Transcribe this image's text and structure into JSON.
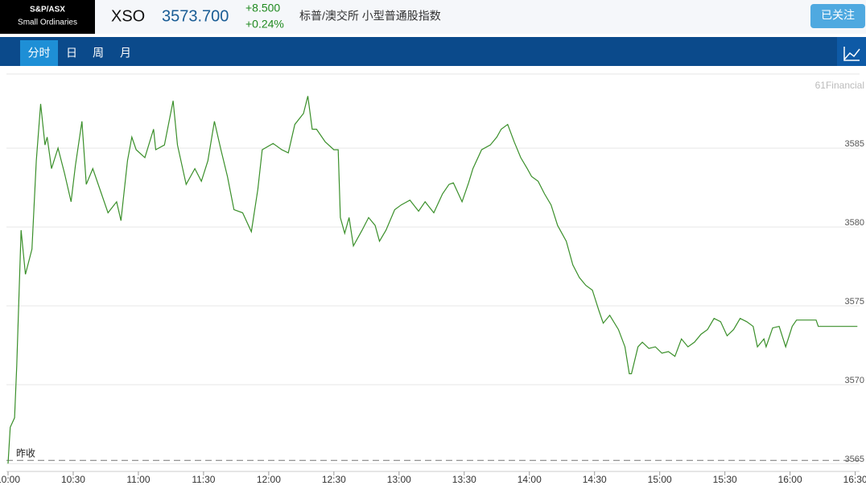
{
  "header": {
    "logo": [
      "S&P/ASX",
      "Small Ordinaries"
    ],
    "symbol": "XSO",
    "price": "3573.700",
    "change": "+8.500",
    "change_pct": "+0.24%",
    "name": "标普/澳交所 小型普通股指数",
    "follow_button": "已关注"
  },
  "tabs": [
    "分时",
    "日",
    "周",
    "月"
  ],
  "active_tab": 0,
  "chart_data": {
    "type": "line",
    "watermark": "61Financial",
    "color": "#3a8f2a",
    "x": [
      "10:00",
      "10:01",
      "10:03",
      "10:04",
      "10:06",
      "10:08",
      "10:11",
      "10:13",
      "10:15",
      "10:17",
      "10:18",
      "10:20",
      "10:23",
      "10:26",
      "10:29",
      "10:31",
      "10:34",
      "10:36",
      "10:39",
      "10:43",
      "10:46",
      "10:50",
      "10:52",
      "10:55",
      "10:57",
      "10:59",
      "11:03",
      "11:07",
      "11:08",
      "11:12",
      "11:16",
      "11:18",
      "11:22",
      "11:26",
      "11:29",
      "11:32",
      "11:35",
      "11:38",
      "11:41",
      "11:44",
      "11:48",
      "11:52",
      "11:55",
      "11:57",
      "12:02",
      "12:06",
      "12:09",
      "12:12",
      "12:16",
      "12:18",
      "12:20",
      "12:22",
      "12:26",
      "12:30",
      "12:32",
      "12:33",
      "12:35",
      "12:37",
      "12:39",
      "12:43",
      "12:46",
      "12:49",
      "12:51",
      "12:54",
      "12:58",
      "13:01",
      "13:05",
      "13:09",
      "13:12",
      "13:16",
      "13:20",
      "13:23",
      "13:25",
      "13:29",
      "13:32",
      "13:34",
      "13:38",
      "13:42",
      "13:45",
      "13:47",
      "13:50",
      "13:53",
      "13:56",
      "13:59",
      "14:01",
      "14:04",
      "14:07",
      "14:10",
      "14:13",
      "14:17",
      "14:20",
      "14:23",
      "14:26",
      "14:29",
      "14:32",
      "14:34",
      "14:37",
      "14:41",
      "14:44",
      "14:46",
      "14:47",
      "14:50",
      "14:52",
      "14:55",
      "14:58",
      "15:01",
      "15:04",
      "15:07",
      "15:10",
      "15:13",
      "15:16",
      "15:19",
      "15:22",
      "15:25",
      "15:28",
      "15:31",
      "15:34",
      "15:37",
      "15:40",
      "15:43",
      "15:45",
      "15:48",
      "15:49",
      "15:52",
      "15:55",
      "15:58",
      "16:01",
      "16:03",
      "16:12",
      "16:13",
      "16:31"
    ],
    "values": [
      3565.0,
      3567.3,
      3567.9,
      3571.2,
      3579.8,
      3577.0,
      3578.6,
      3584.2,
      3587.8,
      3585.2,
      3585.7,
      3583.7,
      3585.0,
      3583.4,
      3581.6,
      3583.9,
      3586.7,
      3582.7,
      3583.7,
      3582.1,
      3580.9,
      3581.6,
      3580.4,
      3584.2,
      3585.7,
      3584.9,
      3584.4,
      3586.2,
      3584.9,
      3585.2,
      3588.0,
      3585.2,
      3582.7,
      3583.7,
      3582.9,
      3584.2,
      3586.7,
      3584.9,
      3583.2,
      3581.1,
      3580.9,
      3579.7,
      3582.4,
      3584.9,
      3585.3,
      3584.9,
      3584.7,
      3586.5,
      3587.2,
      3588.3,
      3586.2,
      3586.2,
      3585.4,
      3584.9,
      3584.9,
      3580.6,
      3579.6,
      3580.6,
      3578.8,
      3579.8,
      3580.6,
      3580.1,
      3579.1,
      3579.8,
      3581.1,
      3581.4,
      3581.7,
      3581.0,
      3581.6,
      3580.9,
      3582.1,
      3582.7,
      3582.8,
      3581.6,
      3582.8,
      3583.7,
      3584.9,
      3585.2,
      3585.7,
      3586.2,
      3586.5,
      3585.4,
      3584.4,
      3583.7,
      3583.2,
      3582.9,
      3582.1,
      3581.4,
      3580.1,
      3579.1,
      3577.6,
      3576.8,
      3576.3,
      3576.0,
      3574.7,
      3573.9,
      3574.4,
      3573.5,
      3572.4,
      3570.7,
      3570.7,
      3572.4,
      3572.7,
      3572.3,
      3572.4,
      3572.0,
      3572.1,
      3571.8,
      3572.9,
      3572.4,
      3572.7,
      3573.2,
      3573.5,
      3574.2,
      3574.0,
      3573.1,
      3573.5,
      3574.2,
      3574.0,
      3573.7,
      3572.4,
      3572.9,
      3572.4,
      3573.6,
      3573.7,
      3572.4,
      3573.7,
      3574.1,
      3574.1,
      3573.7,
      3573.7
    ],
    "reference": {
      "label": "昨收",
      "value": 3565.2
    },
    "xlim": [
      "10:00",
      "16:32"
    ],
    "xticks": [
      "10:00",
      "10:30",
      "11:00",
      "11:30",
      "12:00",
      "12:30",
      "13:00",
      "13:30",
      "14:00",
      "14:30",
      "15:00",
      "15:30",
      "16:00",
      "16:30"
    ],
    "ylim": [
      3564.5,
      3589.7
    ],
    "yticks": [
      3565,
      3570,
      3575,
      3580,
      3585
    ],
    "grid": true
  }
}
